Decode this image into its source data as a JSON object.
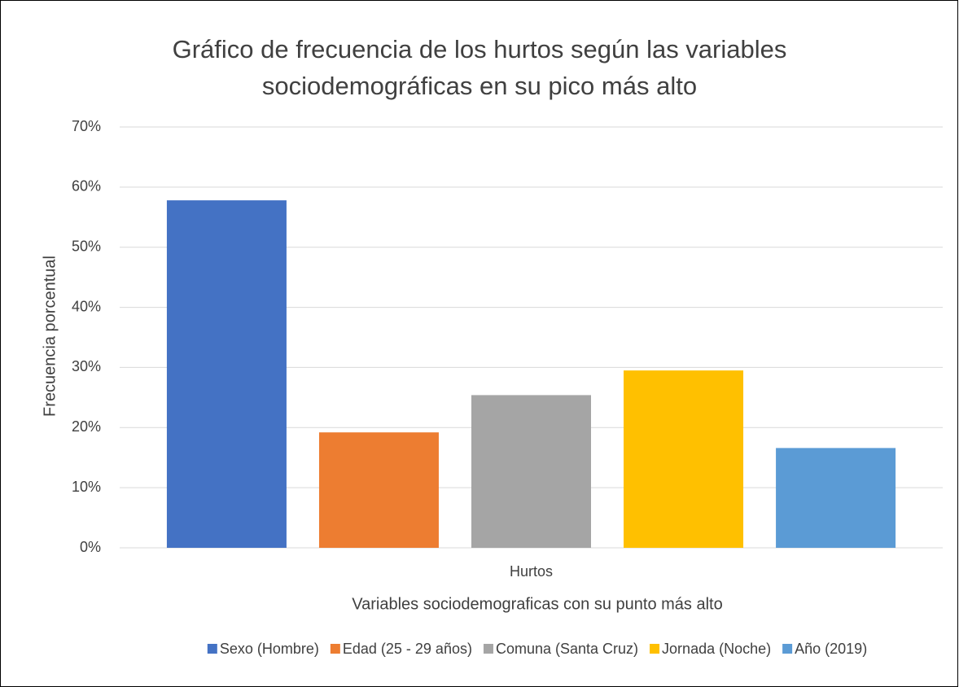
{
  "chart_data": {
    "type": "bar",
    "title": "Gráfico de frecuencia de los hurtos según las variables sociodemográficas en su pico más alto",
    "x_label": "Variables sociodemograficas con su punto más alto",
    "y_label": "Frecuencia porcentual",
    "categories": [
      "Hurtos"
    ],
    "series": [
      {
        "name": "Sexo (Hombre)",
        "color": "#4472c4",
        "values": [
          57.8
        ]
      },
      {
        "name": "Edad (25 - 29 años)",
        "color": "#ed7d31",
        "values": [
          19.2
        ]
      },
      {
        "name": "Comuna (Santa Cruz)",
        "color": "#a5a5a5",
        "values": [
          25.4
        ]
      },
      {
        "name": "Jornada (Noche)",
        "color": "#ffc000",
        "values": [
          29.5
        ]
      },
      {
        "name": "Año (2019)",
        "color": "#5b9bd5",
        "values": [
          16.6
        ]
      }
    ],
    "ylim": [
      0,
      70
    ],
    "yticks": [
      {
        "value": 0,
        "label": "0%"
      },
      {
        "value": 10,
        "label": "10%"
      },
      {
        "value": 20,
        "label": "20%"
      },
      {
        "value": 30,
        "label": "30%"
      },
      {
        "value": 40,
        "label": "40%"
      },
      {
        "value": 50,
        "label": "50%"
      },
      {
        "value": 60,
        "label": "60%"
      },
      {
        "value": 70,
        "label": "70%"
      }
    ],
    "grid": true,
    "legend": "bottom"
  }
}
